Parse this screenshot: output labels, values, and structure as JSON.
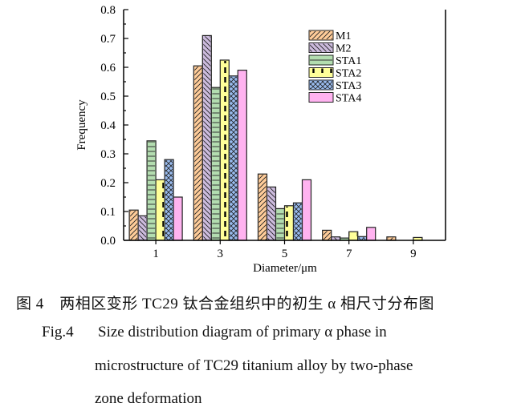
{
  "chart_data": {
    "type": "bar",
    "xlabel": "Diameter/μm",
    "ylabel": "Frequency",
    "x": [
      1,
      3,
      5,
      7,
      9
    ],
    "xticks": [
      "1",
      "3",
      "5",
      "7",
      "9"
    ],
    "xlim": [
      0,
      10
    ],
    "ylim": [
      0,
      0.8
    ],
    "yticks": [
      "0.0",
      "0.1",
      "0.2",
      "0.3",
      "0.4",
      "0.5",
      "0.6",
      "0.7",
      "0.8"
    ],
    "grid": false,
    "legend": "top-right",
    "series": [
      {
        "name": "M1",
        "values": [
          0.105,
          0.605,
          0.23,
          0.035,
          0.012
        ],
        "color": "#ffcc99",
        "pattern": "diag-right"
      },
      {
        "name": "M2",
        "values": [
          0.085,
          0.71,
          0.185,
          0.012,
          0
        ],
        "color": "#ccbbdd",
        "pattern": "diag-left"
      },
      {
        "name": "STA1",
        "values": [
          0.345,
          0.53,
          0.11,
          0.008,
          0
        ],
        "color": "#b3ddb0",
        "pattern": "horizontal"
      },
      {
        "name": "STA2",
        "values": [
          0.21,
          0.625,
          0.12,
          0.03,
          0.01
        ],
        "color": "#ffff99",
        "pattern": "dash"
      },
      {
        "name": "STA3",
        "values": [
          0.28,
          0.57,
          0.13,
          0.013,
          0
        ],
        "color": "#99bbee",
        "pattern": "cross"
      },
      {
        "name": "STA4",
        "values": [
          0.15,
          0.59,
          0.21,
          0.045,
          0
        ],
        "color": "#ffb3f0",
        "pattern": "none"
      }
    ]
  },
  "caption": {
    "cn": "图 4　两相区变形 TC29 钛合金组织中的初生 α 相尺寸分布图",
    "en_label": "Fig.4",
    "en_line1": "Size distribution diagram of primary α phase in",
    "en_line2": "microstructure of TC29 titanium alloy by two-phase",
    "en_line3": "zone deformation"
  }
}
